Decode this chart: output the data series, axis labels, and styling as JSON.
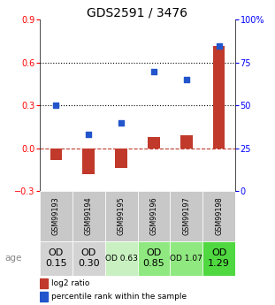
{
  "title": "GDS2591 / 3476",
  "samples": [
    "GSM99193",
    "GSM99194",
    "GSM99195",
    "GSM99196",
    "GSM99197",
    "GSM99198"
  ],
  "log2_ratio": [
    -0.08,
    -0.18,
    -0.14,
    0.08,
    0.09,
    0.72
  ],
  "percentile_rank": [
    50,
    33,
    40,
    70,
    65,
    85
  ],
  "ylim_left": [
    -0.3,
    0.9
  ],
  "ylim_right": [
    0,
    100
  ],
  "yticks_left": [
    -0.3,
    0.0,
    0.3,
    0.6,
    0.9
  ],
  "yticks_right": [
    0,
    25,
    50,
    75,
    100
  ],
  "bar_color": "#c0392b",
  "dot_color": "#2255cc",
  "hline_color": "#c0392b",
  "background_color": "#ffffff",
  "age_values": [
    "OD\n0.15",
    "OD\n0.30",
    "OD 0.63",
    "OD\n0.85",
    "OD 1.07",
    "OD\n1.29"
  ],
  "age_bg_colors": [
    "#d3d3d3",
    "#d3d3d3",
    "#c8f0c0",
    "#90e880",
    "#90e880",
    "#50d840"
  ],
  "age_fontsize": [
    8,
    8,
    6.5,
    8,
    6.5,
    8
  ],
  "sample_bg_color": "#c8c8c8",
  "title_fontsize": 10
}
